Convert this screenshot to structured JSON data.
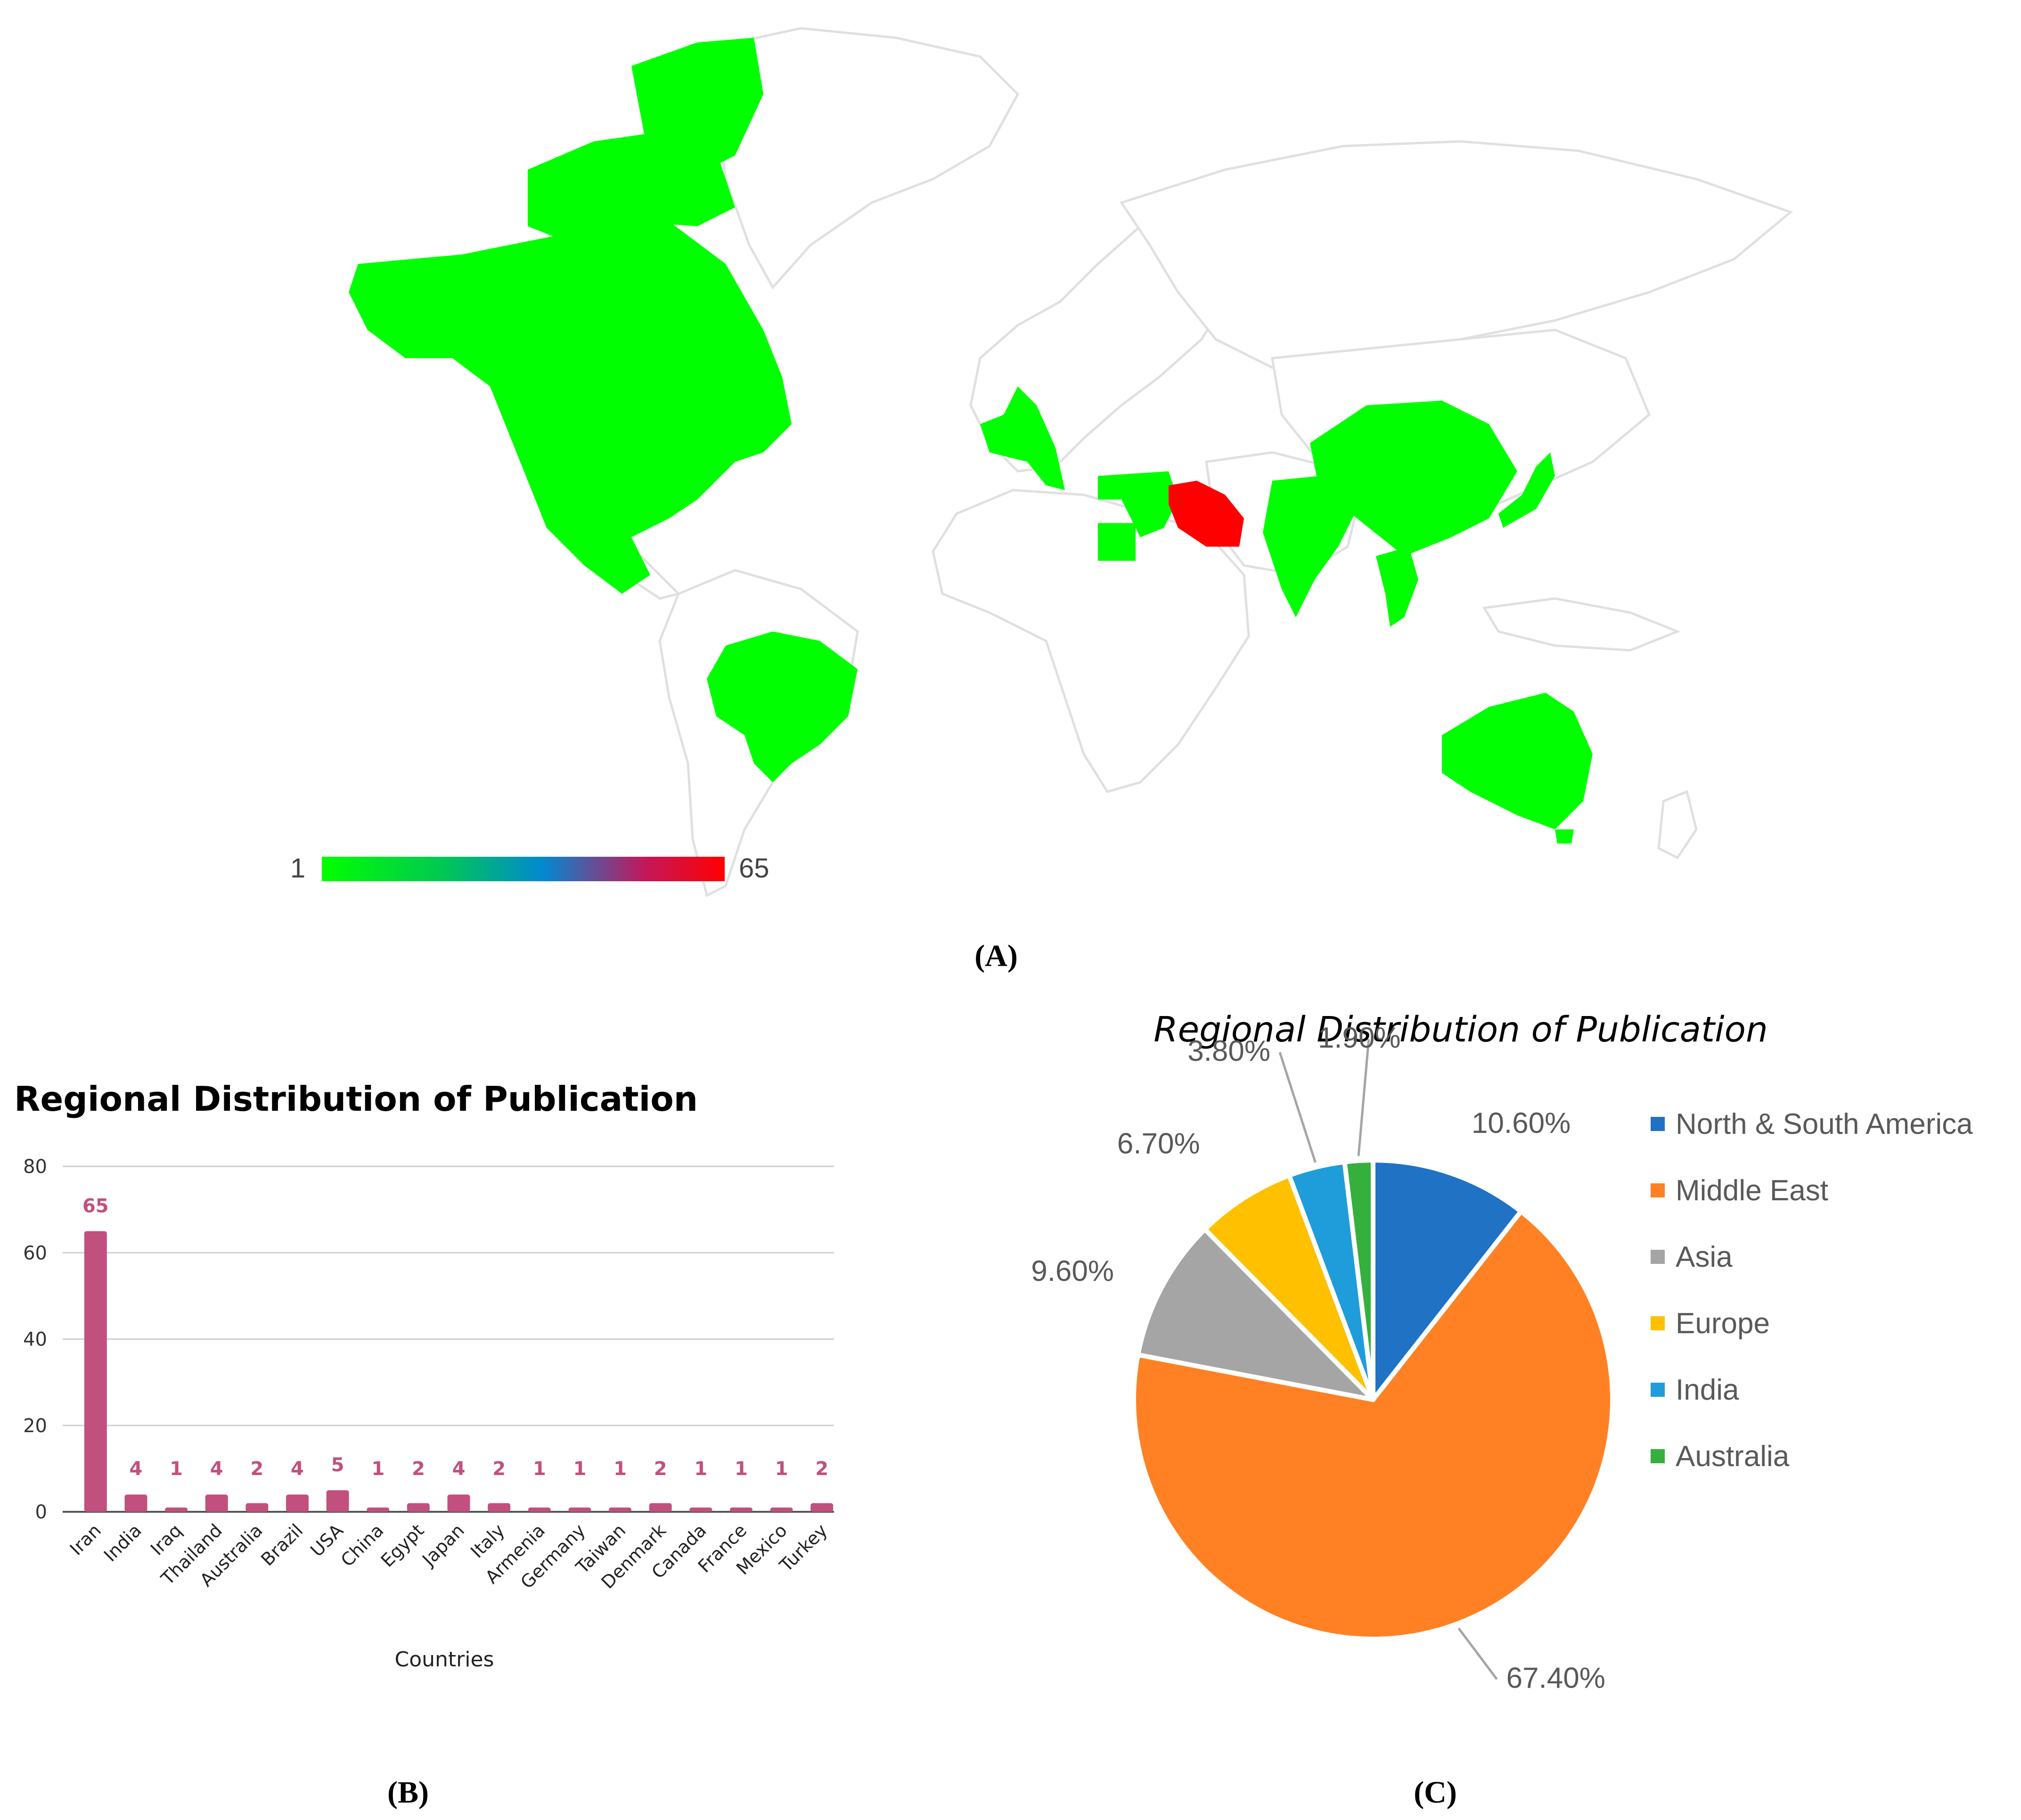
{
  "panels": {
    "a_label": "(A)",
    "b_label": "(B)",
    "c_label": "(C)"
  },
  "map": {
    "scale_min": "1",
    "scale_max": "65",
    "scale_colors": [
      "#00ff00",
      "#00c853",
      "#0288d1",
      "#c2185b",
      "#ff0000"
    ],
    "base_fill": "#ffffff",
    "border_color": "#e0e0e0",
    "highlight_low": "#00ff00",
    "highlight_high": "#ff0000",
    "regions": [
      {
        "name": "USA/Canada/Mexico",
        "color": "#00ff00"
      },
      {
        "name": "Brazil",
        "color": "#00ff00"
      },
      {
        "name": "Europe",
        "color": "#00ff00"
      },
      {
        "name": "Egypt",
        "color": "#00ff00"
      },
      {
        "name": "Turkey/Iraq",
        "color": "#00ff00"
      },
      {
        "name": "Iran",
        "color": "#ff0000"
      },
      {
        "name": "India",
        "color": "#00ff00"
      },
      {
        "name": "China",
        "color": "#00ff00"
      },
      {
        "name": "Thailand",
        "color": "#00ff00"
      },
      {
        "name": "Japan",
        "color": "#00ff00"
      },
      {
        "name": "Australia",
        "color": "#00ff00"
      }
    ]
  },
  "chart_data": [
    {
      "type": "bar",
      "title": "Regional Distribution of Publication",
      "xlabel": "Countries",
      "ylabel": "",
      "ylim": [
        0,
        80
      ],
      "yticks": [
        0,
        20,
        40,
        60,
        80
      ],
      "grid": true,
      "bar_color": "#c2507e",
      "label_color": "#c2507e",
      "categories": [
        "Iran",
        "India",
        "Iraq",
        "Thailand",
        "Australia",
        "Brazil",
        "USA",
        "China",
        "Egypt",
        "Japan",
        "Italy",
        "Armenia",
        "Germany",
        "Taiwan",
        "Denmark",
        "Canada",
        "France",
        "Mexico",
        "Turkey"
      ],
      "values": [
        65,
        4,
        1,
        4,
        2,
        4,
        5,
        1,
        2,
        4,
        2,
        1,
        1,
        1,
        2,
        1,
        1,
        1,
        2
      ]
    },
    {
      "type": "pie",
      "title": "Regional Distribution of Publication",
      "legend_position": "right",
      "slices": [
        {
          "label": "North & South America",
          "value": 10.6,
          "display": "10.60%",
          "color": "#1f72c4"
        },
        {
          "label": "Middle East",
          "value": 67.4,
          "display": "67.40%",
          "color": "#ff8124"
        },
        {
          "label": "Asia",
          "value": 9.6,
          "display": "9.60%",
          "color": "#a5a5a5"
        },
        {
          "label": "Europe",
          "value": 6.7,
          "display": "6.70%",
          "color": "#ffc000"
        },
        {
          "label": "India",
          "value": 3.8,
          "display": "3.80%",
          "color": "#1f9ddb"
        },
        {
          "label": "Australia",
          "value": 1.9,
          "display": "1.90%",
          "color": "#35b03c"
        }
      ]
    }
  ]
}
